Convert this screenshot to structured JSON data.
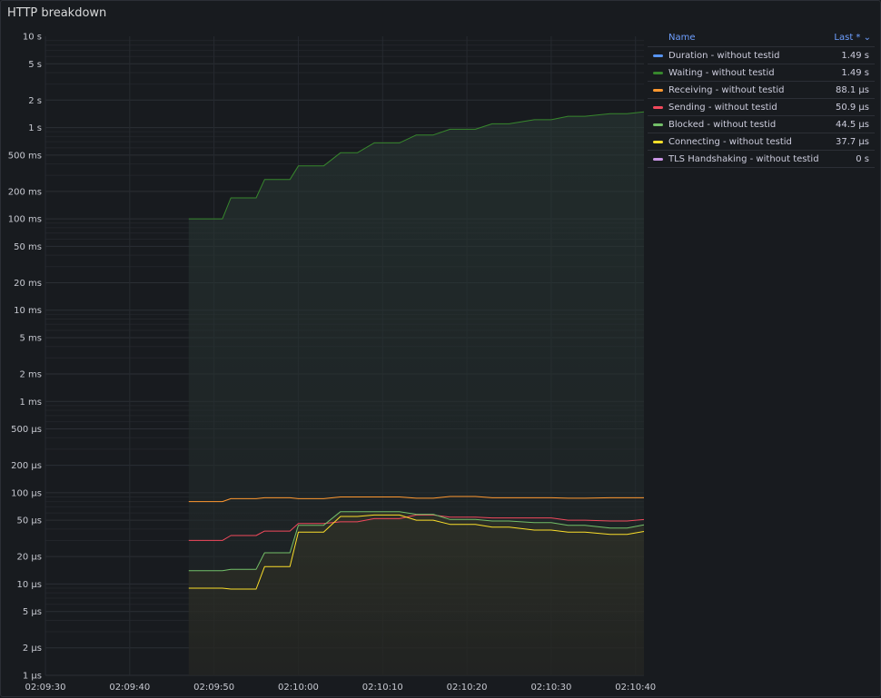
{
  "panel": {
    "title": "HTTP breakdown"
  },
  "legend": {
    "name_header": "Name",
    "last_header": "Last * ⌄",
    "items": [
      {
        "label": "Duration - without testid",
        "value": "1.49 s",
        "color": "#5794f2"
      },
      {
        "label": "Waiting - without testid",
        "value": "1.49 s",
        "color": "#37872d"
      },
      {
        "label": "Receiving - without testid",
        "value": "88.1 µs",
        "color": "#ff9830"
      },
      {
        "label": "Sending - without testid",
        "value": "50.9 µs",
        "color": "#f2495c"
      },
      {
        "label": "Blocked - without testid",
        "value": "44.5 µs",
        "color": "#73bf69"
      },
      {
        "label": "Connecting - without testid",
        "value": "37.7 µs",
        "color": "#fade2a"
      },
      {
        "label": "TLS Handshaking - without testid",
        "value": "0 s",
        "color": "#ca95e5"
      }
    ]
  },
  "chart_data": {
    "type": "line",
    "title": "HTTP breakdown",
    "y_scale": "log10",
    "ylim": [
      "1 µs",
      "10 s"
    ],
    "y_ticks": [
      "10 s",
      "5 s",
      "2 s",
      "1 s",
      "500 ms",
      "200 ms",
      "100 ms",
      "50 ms",
      "20 ms",
      "10 ms",
      "5 ms",
      "2 ms",
      "1 ms",
      "500 µs",
      "200 µs",
      "100 µs",
      "50 µs",
      "20 µs",
      "10 µs",
      "5 µs",
      "2 µs",
      "1 µs"
    ],
    "x_ticks": [
      "02:09:30",
      "02:09:40",
      "02:09:50",
      "02:10:00",
      "02:10:10",
      "02:10:20",
      "02:10:30",
      "02:10:40"
    ],
    "x_range": [
      "02:09:30",
      "02:10:41"
    ],
    "unit": "seconds",
    "x": [
      "02:09:47",
      "02:09:51",
      "02:09:52",
      "02:09:55",
      "02:09:56",
      "02:09:59",
      "02:10:00",
      "02:10:03",
      "02:10:05",
      "02:10:07",
      "02:10:09",
      "02:10:12",
      "02:10:14",
      "02:10:16",
      "02:10:18",
      "02:10:21",
      "02:10:23",
      "02:10:25",
      "02:10:28",
      "02:10:30",
      "02:10:32",
      "02:10:34",
      "02:10:37",
      "02:10:39",
      "02:10:41"
    ],
    "series": [
      {
        "name": "Waiting - without testid",
        "color": "#37872d",
        "fill": true,
        "values": [
          0.1,
          0.1,
          0.17,
          0.17,
          0.27,
          0.27,
          0.38,
          0.38,
          0.53,
          0.53,
          0.68,
          0.68,
          0.83,
          0.83,
          0.96,
          0.96,
          1.1,
          1.1,
          1.22,
          1.22,
          1.33,
          1.33,
          1.42,
          1.42,
          1.49
        ]
      },
      {
        "name": "Receiving - without testid",
        "color": "#ff9830",
        "values": [
          8e-05,
          8e-05,
          8.6e-05,
          8.6e-05,
          8.8e-05,
          8.8e-05,
          8.6e-05,
          8.6e-05,
          9e-05,
          9e-05,
          9e-05,
          9e-05,
          8.7e-05,
          8.7e-05,
          9.1e-05,
          9.1e-05,
          8.8e-05,
          8.8e-05,
          8.8e-05,
          8.8e-05,
          8.7e-05,
          8.7e-05,
          8.8e-05,
          8.8e-05,
          8.81e-05
        ]
      },
      {
        "name": "Sending - without testid",
        "color": "#f2495c",
        "values": [
          3e-05,
          3e-05,
          3.4e-05,
          3.4e-05,
          3.8e-05,
          3.8e-05,
          4.6e-05,
          4.6e-05,
          4.8e-05,
          4.8e-05,
          5.2e-05,
          5.2e-05,
          5.7e-05,
          5.7e-05,
          5.4e-05,
          5.4e-05,
          5.3e-05,
          5.3e-05,
          5.3e-05,
          5.3e-05,
          5e-05,
          5e-05,
          4.9e-05,
          4.9e-05,
          5.09e-05
        ]
      },
      {
        "name": "Blocked - without testid",
        "color": "#73bf69",
        "fill": true,
        "values": [
          1.4e-05,
          1.4e-05,
          1.45e-05,
          1.45e-05,
          2.2e-05,
          2.2e-05,
          4.4e-05,
          4.4e-05,
          6.2e-05,
          6.2e-05,
          6.2e-05,
          6.2e-05,
          5.8e-05,
          5.8e-05,
          5.1e-05,
          5.1e-05,
          4.9e-05,
          4.9e-05,
          4.7e-05,
          4.7e-05,
          4.4e-05,
          4.4e-05,
          4.1e-05,
          4.1e-05,
          4.45e-05
        ]
      },
      {
        "name": "Connecting - without testid",
        "color": "#fade2a",
        "values": [
          9e-06,
          9e-06,
          8.8e-06,
          8.8e-06,
          1.55e-05,
          1.55e-05,
          3.7e-05,
          3.7e-05,
          5.5e-05,
          5.5e-05,
          5.7e-05,
          5.7e-05,
          5e-05,
          5e-05,
          4.5e-05,
          4.5e-05,
          4.2e-05,
          4.2e-05,
          3.9e-05,
          3.9e-05,
          3.7e-05,
          3.7e-05,
          3.5e-05,
          3.5e-05,
          3.77e-05
        ]
      }
    ],
    "grid": true,
    "legend_position": "right"
  }
}
